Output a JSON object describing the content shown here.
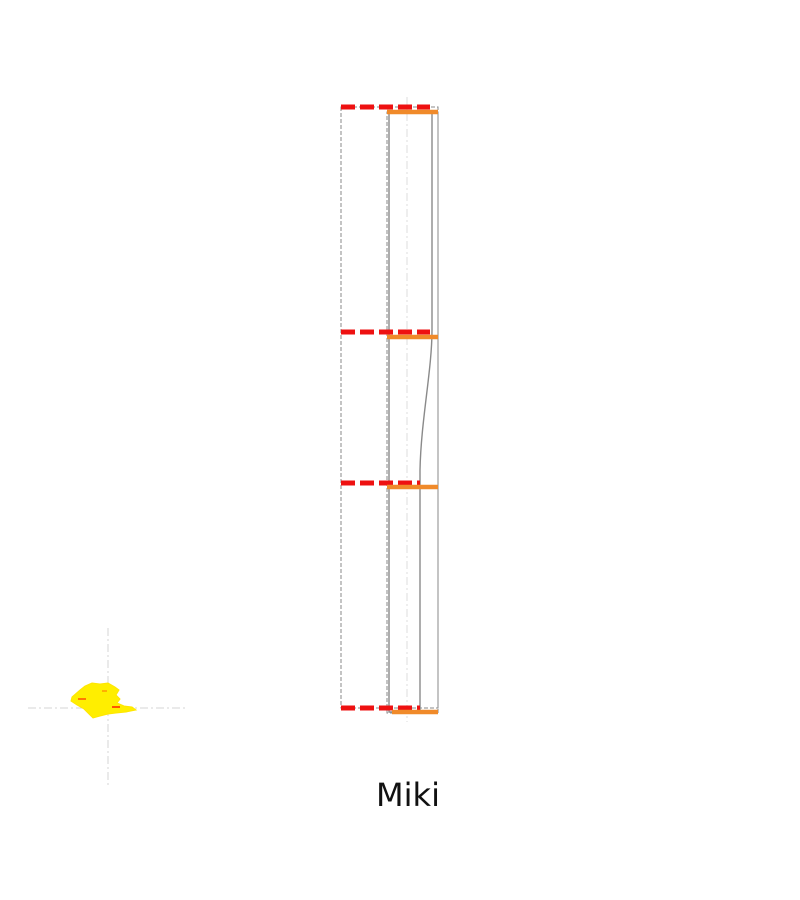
{
  "caption": "Miki",
  "colors": {
    "background": "#ffffff",
    "outline": "#888888",
    "guide": "#d8d8d8",
    "primary_marker": "#ee1111",
    "secondary_marker": "#f08a2a",
    "blob": "#ffee00",
    "blob_accent": "#ff6600"
  }
}
